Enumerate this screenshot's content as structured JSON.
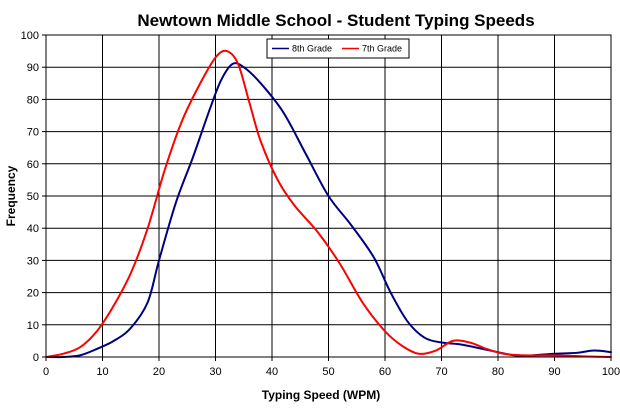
{
  "chart_data": {
    "type": "line",
    "title": "Newtown Middle School - Student Typing Speeds",
    "xlabel": "Typing Speed (WPM)",
    "ylabel": "Frequency",
    "xlim": [
      0,
      100
    ],
    "ylim": [
      0,
      100
    ],
    "x_ticks": [
      0,
      10,
      20,
      30,
      40,
      50,
      60,
      70,
      80,
      90,
      100
    ],
    "y_ticks": [
      0,
      10,
      20,
      30,
      40,
      50,
      60,
      70,
      80,
      90,
      100
    ],
    "grid": true,
    "legend_position": "top-center",
    "series": [
      {
        "name": "8th Grade",
        "color": "#000080",
        "points": [
          [
            0,
            0
          ],
          [
            3,
            0
          ],
          [
            6,
            0.5
          ],
          [
            9,
            2.5
          ],
          [
            12,
            5
          ],
          [
            15,
            9
          ],
          [
            18,
            17
          ],
          [
            20,
            30
          ],
          [
            23,
            48
          ],
          [
            26,
            62
          ],
          [
            29,
            77
          ],
          [
            31,
            86
          ],
          [
            33,
            91
          ],
          [
            35,
            90
          ],
          [
            38,
            85
          ],
          [
            42,
            76
          ],
          [
            46,
            63
          ],
          [
            50,
            50
          ],
          [
            54,
            41
          ],
          [
            58,
            31
          ],
          [
            61,
            20
          ],
          [
            64,
            11
          ],
          [
            67,
            6
          ],
          [
            70,
            4.5
          ],
          [
            73,
            4
          ],
          [
            76,
            3
          ],
          [
            80,
            1.5
          ],
          [
            83,
            0.5
          ],
          [
            86,
            0.5
          ],
          [
            90,
            1
          ],
          [
            94,
            1.3
          ],
          [
            97,
            2
          ],
          [
            100,
            1.5
          ]
        ]
      },
      {
        "name": "7th Grade",
        "color": "#ff0000",
        "points": [
          [
            0,
            0
          ],
          [
            3,
            1
          ],
          [
            6,
            3
          ],
          [
            9,
            8
          ],
          [
            12,
            16
          ],
          [
            15,
            26
          ],
          [
            18,
            40
          ],
          [
            21,
            58
          ],
          [
            24,
            73
          ],
          [
            27,
            84
          ],
          [
            30,
            93
          ],
          [
            32,
            95
          ],
          [
            34,
            91
          ],
          [
            36,
            79
          ],
          [
            38,
            67
          ],
          [
            41,
            55
          ],
          [
            44,
            47
          ],
          [
            48,
            39
          ],
          [
            52,
            29
          ],
          [
            56,
            17
          ],
          [
            60,
            8
          ],
          [
            63,
            3.5
          ],
          [
            66,
            1
          ],
          [
            69,
            2
          ],
          [
            72,
            5
          ],
          [
            75,
            4.5
          ],
          [
            78,
            2.5
          ],
          [
            81,
            1
          ],
          [
            85,
            0.5
          ],
          [
            90,
            0.5
          ],
          [
            95,
            0.2
          ],
          [
            100,
            0
          ]
        ]
      }
    ]
  }
}
